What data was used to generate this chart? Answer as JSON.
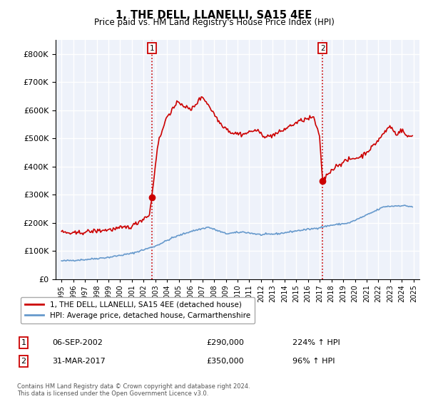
{
  "title": "1, THE DELL, LLANELLI, SA15 4EE",
  "subtitle": "Price paid vs. HM Land Registry's House Price Index (HPI)",
  "legend_line1": "1, THE DELL, LLANELLI, SA15 4EE (detached house)",
  "legend_line2": "HPI: Average price, detached house, Carmarthenshire",
  "footnote": "Contains HM Land Registry data © Crown copyright and database right 2024.\nThis data is licensed under the Open Government Licence v3.0.",
  "sale1_label": "1",
  "sale1_date": "06-SEP-2002",
  "sale1_price": "£290,000",
  "sale1_hpi": "224% ↑ HPI",
  "sale1_x": 2002.69,
  "sale1_y": 290000,
  "sale2_label": "2",
  "sale2_date": "31-MAR-2017",
  "sale2_price": "£350,000",
  "sale2_hpi": "96% ↑ HPI",
  "sale2_x": 2017.25,
  "sale2_y": 350000,
  "hpi_color": "#6699cc",
  "price_color": "#cc0000",
  "background_color": "#eef2fa",
  "grid_color": "#ffffff",
  "ylim": [
    0,
    850000
  ],
  "xlim": [
    1994.5,
    2025.5
  ]
}
